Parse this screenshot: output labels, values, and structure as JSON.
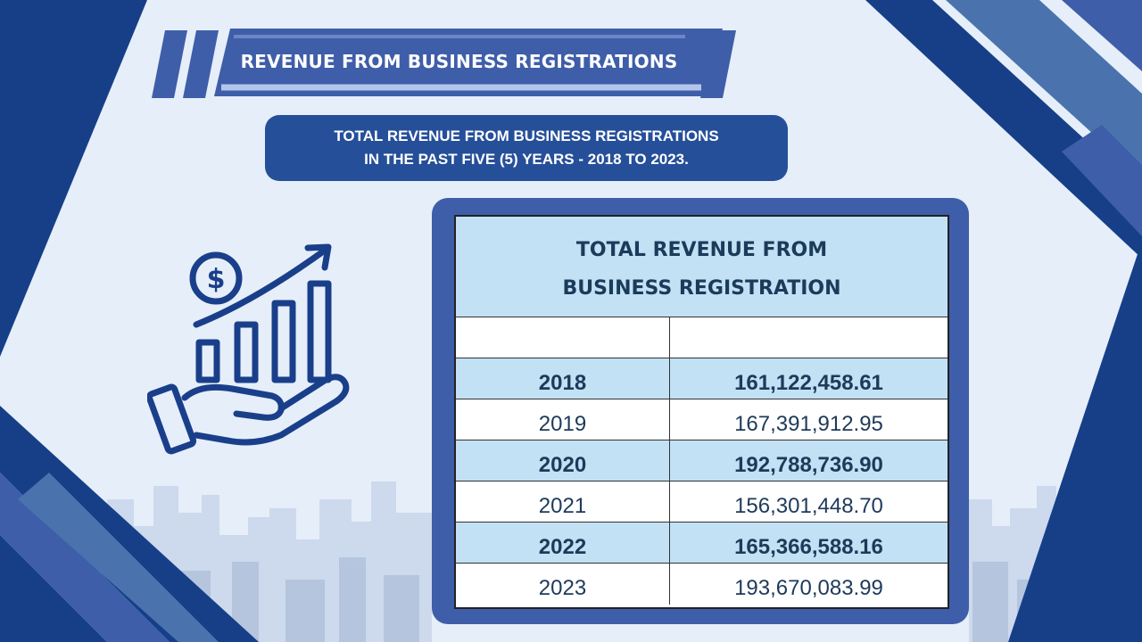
{
  "banner": {
    "title": "REVENUE FROM BUSINESS REGISTRATIONS"
  },
  "subtitle": {
    "line1": "TOTAL REVENUE FROM BUSINESS REGISTRATIONS",
    "line2": "IN THE PAST FIVE (5) YEARS - 2018 TO 2023."
  },
  "icons": {
    "main": "hand-growth-chart-icon",
    "dollar": "dollar-coin-icon"
  },
  "colors": {
    "navy": "#163f88",
    "blue": "#3f5ea9",
    "steel": "#4a73ae",
    "light_blue": "#c2e1f4",
    "background": "#e6eef9",
    "text_dark": "#1b3b5b"
  },
  "table": {
    "header_line1": "TOTAL REVENUE FROM",
    "header_line2": "BUSINESS REGISTRATION",
    "rows": [
      {
        "year": "2018",
        "value": "161,122,458.61",
        "bold": true
      },
      {
        "year": "2019",
        "value": "167,391,912.95",
        "bold": false
      },
      {
        "year": "2020",
        "value": "192,788,736.90",
        "bold": true
      },
      {
        "year": "2021",
        "value": "156,301,448.70",
        "bold": false
      },
      {
        "year": "2022",
        "value": "165,366,588.16",
        "bold": true
      },
      {
        "year": "2023",
        "value": "193,670,083.99",
        "bold": false
      }
    ]
  }
}
